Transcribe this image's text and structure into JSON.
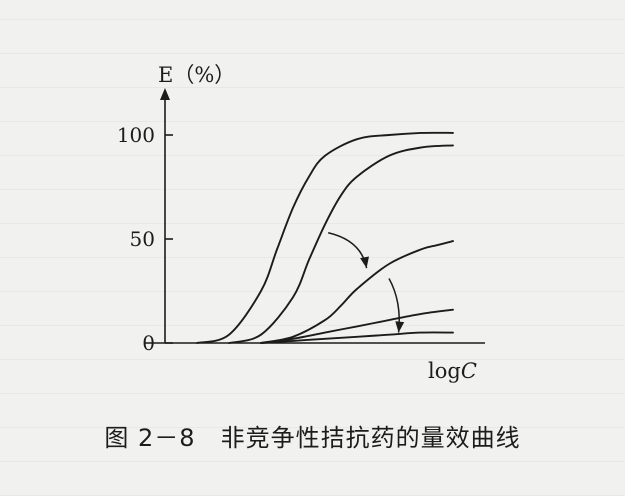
{
  "figure": {
    "caption": "图 2－8　非竞争性拮抗药的量效曲线"
  },
  "chart_data": {
    "type": "line",
    "ylabel": "E（%）",
    "xlabel": "log",
    "xlabel_var": "C",
    "yticks": [
      0,
      50,
      100
    ],
    "ylim": [
      0,
      110
    ],
    "xlim": [
      0,
      10
    ],
    "grid": false,
    "legend": "none",
    "series": [
      {
        "x": [
          1.0,
          2.0,
          3.0,
          3.5,
          4.0,
          4.5,
          5.0,
          6.0,
          7.0,
          8.0,
          9.0
        ],
        "values": [
          0,
          4,
          25,
          45,
          65,
          80,
          90,
          98,
          100,
          101,
          101
        ]
      },
      {
        "x": [
          2.0,
          3.0,
          4.0,
          4.5,
          5.0,
          5.5,
          6.0,
          7.0,
          8.0,
          9.0
        ],
        "values": [
          0,
          4,
          22,
          40,
          57,
          71,
          80,
          90,
          94,
          95
        ]
      },
      {
        "x": [
          3.0,
          4.0,
          5.0,
          5.5,
          6.0,
          7.0,
          8.0,
          8.5,
          9.0
        ],
        "values": [
          0,
          3,
          11,
          18,
          26,
          38,
          45,
          47,
          49
        ]
      },
      {
        "x": [
          3.0,
          4.0,
          5.0,
          6.0,
          7.0,
          8.0,
          9.0
        ],
        "values": [
          0,
          2,
          5,
          8,
          11,
          14,
          16
        ]
      },
      {
        "x": [
          3.0,
          4.0,
          5.0,
          6.0,
          7.0,
          8.0,
          9.0
        ],
        "values": [
          0,
          1,
          2,
          3,
          4,
          5,
          5
        ]
      }
    ],
    "annotations": [
      {
        "kind": "arrow",
        "from": [
          5.1,
          53
        ],
        "to": [
          6.3,
          36
        ]
      },
      {
        "kind": "arrow",
        "from": [
          7.0,
          31
        ],
        "to": [
          7.3,
          5
        ]
      }
    ]
  }
}
